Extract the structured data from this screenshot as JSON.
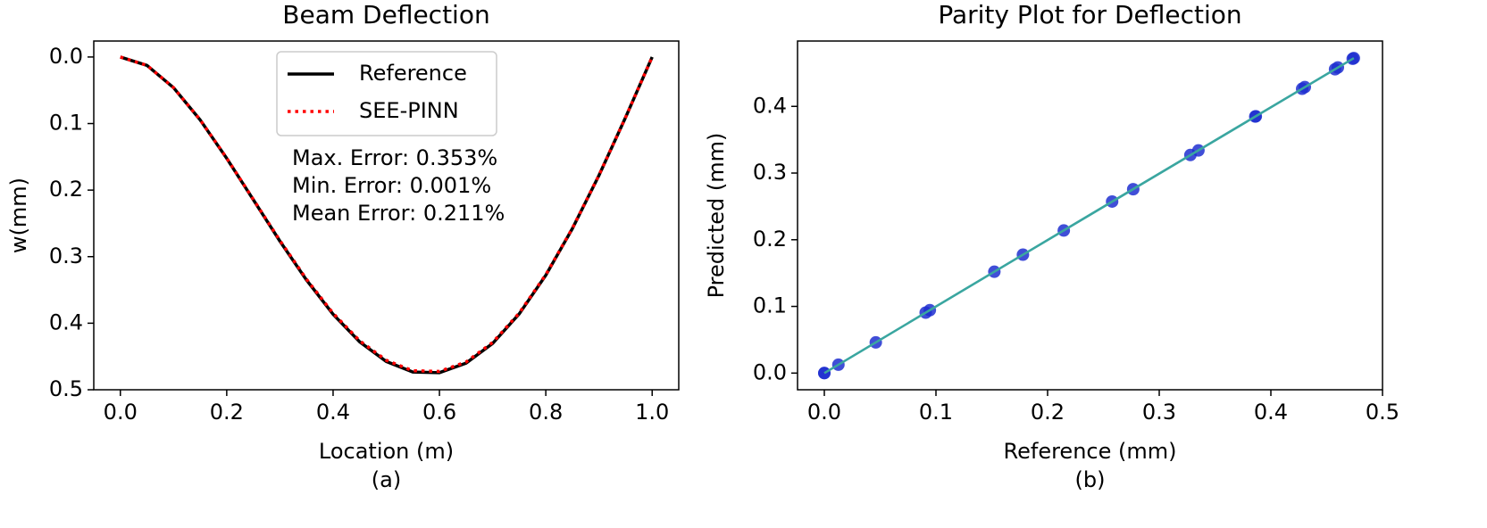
{
  "chart_data": [
    {
      "type": "line",
      "title": "Beam Deflection",
      "xlabel": "Location (m)",
      "ylabel": "w(mm)",
      "caption": "(a)",
      "x": [
        0,
        0.05,
        0.1,
        0.15,
        0.2,
        0.25,
        0.3,
        0.35,
        0.4,
        0.45,
        0.5,
        0.55,
        0.6,
        0.65,
        0.7,
        0.75,
        0.8,
        0.85,
        0.9,
        0.95,
        1.0
      ],
      "series": [
        {
          "name": "Reference",
          "color": "#000000",
          "linestyle": "solid",
          "values": [
            0,
            0.0126,
            0.0461,
            0.0945,
            0.1523,
            0.2145,
            0.2767,
            0.3351,
            0.3865,
            0.428,
            0.4575,
            0.4733,
            0.4743,
            0.46,
            0.4304,
            0.386,
            0.3279,
            0.2578,
            0.1779,
            0.0908,
            0
          ]
        },
        {
          "name": "SEE-PINN",
          "color": "#ff0000",
          "linestyle": "dotted",
          "values": [
            0,
            0.0126,
            0.046,
            0.0943,
            0.152,
            0.2139,
            0.2758,
            0.3339,
            0.3851,
            0.4264,
            0.4557,
            0.4714,
            0.4724,
            0.4583,
            0.4289,
            0.3848,
            0.3271,
            0.2573,
            0.1776,
            0.0907,
            0
          ]
        }
      ],
      "annotations": [
        "Max. Error: 0.353%",
        "Min. Error: 0.001%",
        "Mean Error: 0.211%"
      ],
      "xlim": [
        -0.05,
        1.05
      ],
      "xticks": [
        {
          "value": 0,
          "label": "0.0"
        },
        0.2,
        0.4,
        0.6,
        0.8,
        {
          "value": 1,
          "label": "1.0"
        }
      ],
      "ylim": [
        0.5,
        -0.024
      ],
      "yticks": [
        {
          "value": 0,
          "label": "0.0"
        },
        0.1,
        0.2,
        0.3,
        0.4,
        0.5
      ],
      "legend": "upper center"
    },
    {
      "type": "scatter",
      "title": "Parity Plot for Deflection",
      "xlabel": "Reference (mm)",
      "ylabel": "Predicted (mm)",
      "caption": "(b)",
      "x": [
        0,
        0.0126,
        0.0461,
        0.0945,
        0.1523,
        0.2145,
        0.2767,
        0.3351,
        0.3865,
        0.428,
        0.4575,
        0.4733,
        0.4743,
        0.46,
        0.4304,
        0.386,
        0.3279,
        0.2578,
        0.1779,
        0.0908,
        0
      ],
      "values": [
        0,
        0.0126,
        0.046,
        0.0943,
        0.152,
        0.2139,
        0.2758,
        0.3339,
        0.3851,
        0.4264,
        0.4557,
        0.4714,
        0.4724,
        0.4583,
        0.4289,
        0.3848,
        0.3271,
        0.2573,
        0.1776,
        0.0907,
        0
      ],
      "color": "#1f2fd0",
      "line_color": "#3aa6a0",
      "xlim": [
        -0.024,
        0.5
      ],
      "xticks": [
        {
          "value": 0,
          "label": "0.0"
        },
        0.1,
        0.2,
        0.3,
        0.4,
        0.5
      ],
      "ylim": [
        -0.025,
        0.498
      ],
      "yticks": [
        {
          "value": 0,
          "label": "0.0"
        },
        0.1,
        0.2,
        0.3,
        0.4
      ]
    }
  ]
}
